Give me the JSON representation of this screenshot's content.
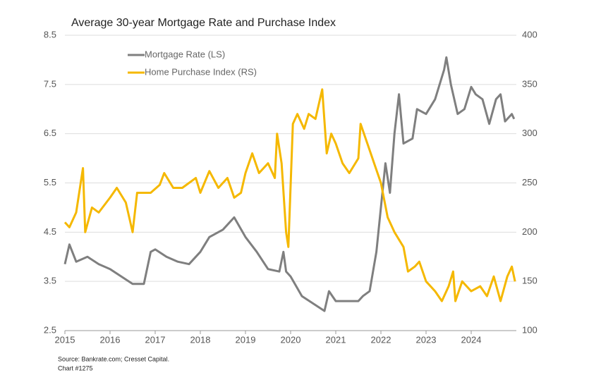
{
  "chart_data": {
    "type": "line",
    "title": "Average 30-year Mortgage Rate and Purchase Index",
    "source": "Source: Bankrate.com; Cresset Capital.",
    "note": "Chart #1275",
    "xlim": [
      2015,
      2025
    ],
    "xticks": [
      2015,
      2016,
      2017,
      2018,
      2019,
      2020,
      2021,
      2022,
      2023,
      2024
    ],
    "ylim": [
      2.5,
      8.5
    ],
    "yticks": [
      2.5,
      3.5,
      4.5,
      5.5,
      6.5,
      7.5,
      8.5
    ],
    "y2lim": [
      100,
      400
    ],
    "y2ticks": [
      100,
      150,
      200,
      250,
      300,
      350,
      400
    ],
    "grid": true,
    "series": [
      {
        "name": "Mortgage Rate (LS)",
        "color": "#7f7f7f",
        "x": [
          2015.0,
          2015.1,
          2015.25,
          2015.5,
          2015.75,
          2016.0,
          2016.25,
          2016.5,
          2016.75,
          2016.9,
          2017.0,
          2017.25,
          2017.5,
          2017.75,
          2018.0,
          2018.2,
          2018.5,
          2018.75,
          2019.0,
          2019.25,
          2019.5,
          2019.75,
          2019.84,
          2019.9,
          2020.0,
          2020.25,
          2020.5,
          2020.75,
          2020.85,
          2021.0,
          2021.25,
          2021.5,
          2021.6,
          2021.75,
          2021.9,
          2022.0,
          2022.1,
          2022.2,
          2022.3,
          2022.4,
          2022.5,
          2022.7,
          2022.8,
          2023.0,
          2023.2,
          2023.4,
          2023.45,
          2023.55,
          2023.7,
          2023.85,
          2024.0,
          2024.1,
          2024.25,
          2024.4,
          2024.55,
          2024.65,
          2024.75,
          2024.9,
          2024.95
        ],
        "values": [
          3.85,
          4.25,
          3.9,
          4.0,
          3.85,
          3.75,
          3.6,
          3.45,
          3.45,
          4.1,
          4.15,
          4.0,
          3.9,
          3.85,
          4.1,
          4.4,
          4.55,
          4.8,
          4.4,
          4.1,
          3.75,
          3.7,
          4.1,
          3.7,
          3.6,
          3.2,
          3.05,
          2.9,
          3.3,
          3.1,
          3.1,
          3.1,
          3.2,
          3.3,
          4.1,
          5.0,
          5.9,
          5.3,
          6.5,
          7.3,
          6.3,
          6.4,
          7.0,
          6.9,
          7.2,
          7.8,
          8.05,
          7.5,
          6.9,
          7.0,
          7.45,
          7.3,
          7.2,
          6.7,
          7.2,
          7.3,
          6.75,
          6.9,
          6.8
        ]
      },
      {
        "name": "Home Purchase Index (RS)",
        "color": "#f5b800",
        "axis": "y2",
        "x": [
          2015.0,
          2015.1,
          2015.25,
          2015.4,
          2015.45,
          2015.6,
          2015.75,
          2016.0,
          2016.15,
          2016.35,
          2016.5,
          2016.6,
          2016.9,
          2017.1,
          2017.2,
          2017.4,
          2017.6,
          2017.75,
          2017.9,
          2018.0,
          2018.2,
          2018.4,
          2018.6,
          2018.75,
          2018.9,
          2019.0,
          2019.15,
          2019.3,
          2019.5,
          2019.65,
          2019.7,
          2019.8,
          2019.9,
          2019.95,
          2020.05,
          2020.15,
          2020.3,
          2020.4,
          2020.55,
          2020.7,
          2020.8,
          2020.9,
          2021.0,
          2021.15,
          2021.3,
          2021.5,
          2021.55,
          2021.7,
          2021.85,
          2022.0,
          2022.15,
          2022.3,
          2022.5,
          2022.6,
          2022.75,
          2022.85,
          2023.0,
          2023.2,
          2023.35,
          2023.5,
          2023.6,
          2023.65,
          2023.8,
          2024.0,
          2024.2,
          2024.35,
          2024.5,
          2024.65,
          2024.8,
          2024.9,
          2024.97
        ],
        "values": [
          210,
          205,
          220,
          265,
          200,
          225,
          220,
          235,
          245,
          230,
          200,
          240,
          240,
          248,
          260,
          245,
          245,
          250,
          255,
          240,
          262,
          245,
          255,
          235,
          240,
          260,
          280,
          260,
          270,
          255,
          300,
          270,
          200,
          185,
          310,
          320,
          305,
          320,
          315,
          345,
          280,
          300,
          290,
          270,
          260,
          275,
          310,
          290,
          270,
          250,
          215,
          200,
          185,
          160,
          165,
          170,
          150,
          140,
          130,
          145,
          160,
          130,
          150,
          140,
          145,
          135,
          155,
          130,
          155,
          165,
          150
        ]
      }
    ]
  }
}
